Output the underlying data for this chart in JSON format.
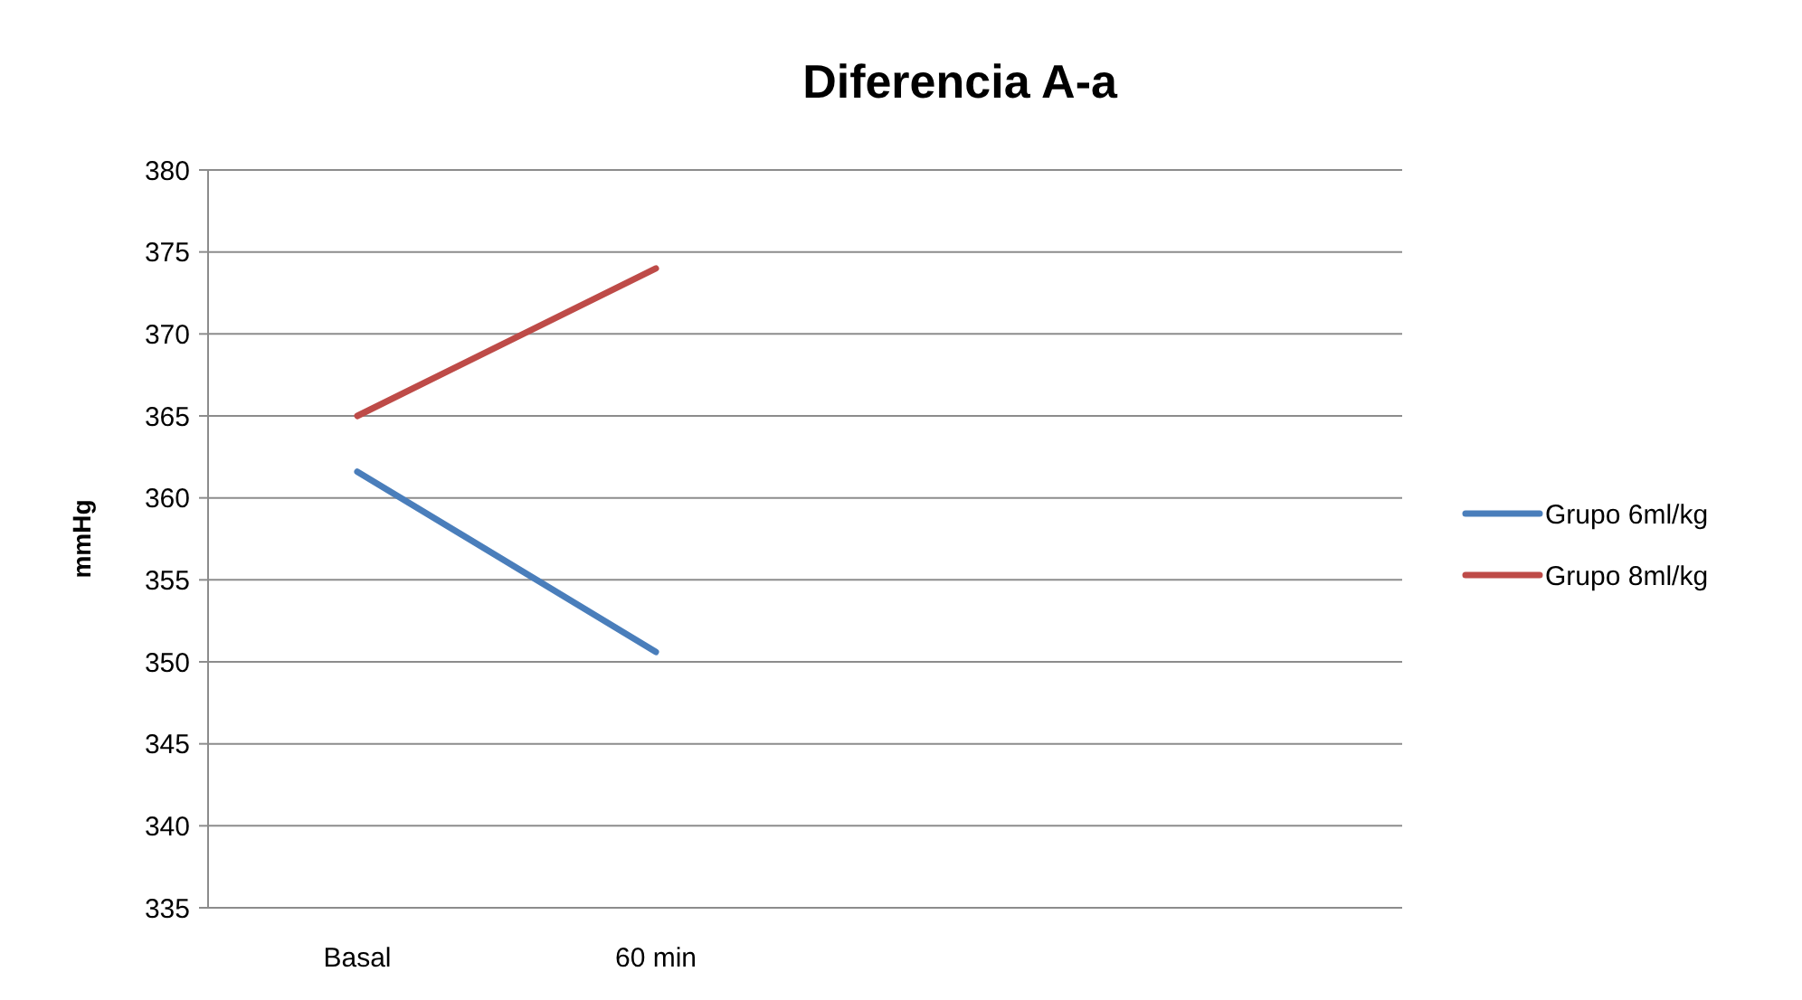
{
  "chart_data": {
    "type": "line",
    "title": "Diferencia A-a",
    "ylabel": "mmHg",
    "categories": [
      "Basal",
      "60 min",
      null,
      null
    ],
    "series": [
      {
        "name": "Grupo 6ml/kg",
        "color": "#4a7ebb",
        "values": [
          361.6,
          350.6,
          null,
          null
        ]
      },
      {
        "name": "Grupo 8ml/kg",
        "color": "#be4b48",
        "values": [
          365,
          374,
          null,
          null
        ]
      }
    ],
    "ylim": [
      335,
      380
    ],
    "yticks": [
      335,
      340,
      345,
      350,
      355,
      360,
      365,
      370,
      375,
      380
    ],
    "grid": "y",
    "legend": "right",
    "marker": "none",
    "line_style": "solid"
  }
}
